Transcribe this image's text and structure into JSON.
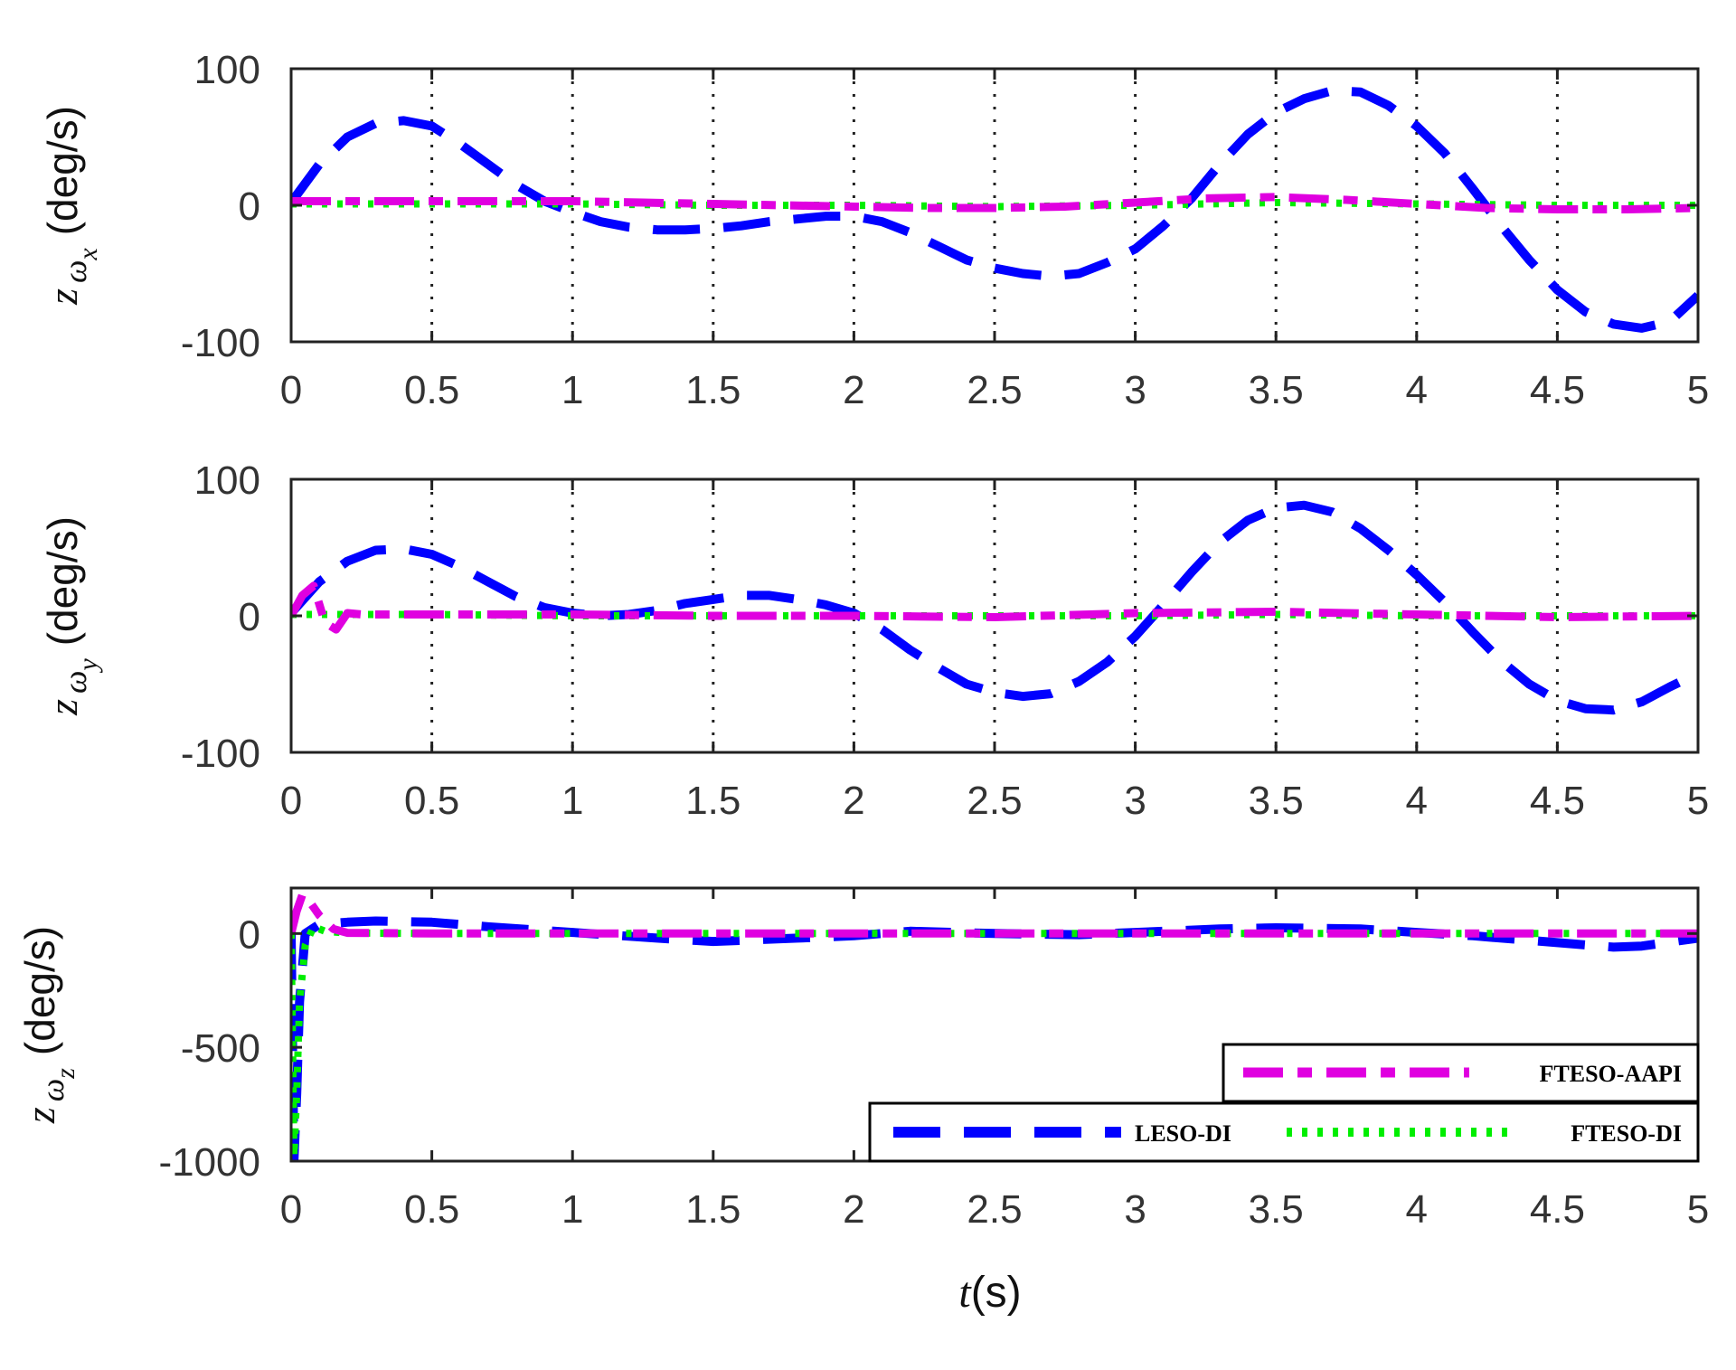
{
  "colors": {
    "LESO-DI": "#0000ff",
    "FTESO-DI": "#00ee00",
    "FTESO-AAPI": "#e000e0",
    "axes": "#222222",
    "grid": "#222222"
  },
  "chart_data": [
    {
      "type": "line",
      "panel": "top",
      "ylabel": "z",
      "ylabel_omega": "ω",
      "ylabel_sub": "x",
      "ylabel_unit": "(deg/s)",
      "xlim": [
        0,
        5
      ],
      "ylim": [
        -100,
        100
      ],
      "xticks": [
        0,
        0.5,
        1,
        1.5,
        2,
        2.5,
        3,
        3.5,
        4,
        4.5,
        5
      ],
      "xtick_labels": [
        "0",
        "0.5",
        "1",
        "1.5",
        "2",
        "2.5",
        "3",
        "3.5",
        "4",
        "4.5",
        "5"
      ],
      "yticks": [
        -100,
        0,
        100
      ],
      "ytick_labels": [
        "-100",
        "0",
        "100"
      ],
      "grid": "vertical dotted at x ticks",
      "series": [
        {
          "name": "LESO-DI",
          "style": "dash",
          "x": [
            0,
            0.1,
            0.2,
            0.3,
            0.4,
            0.5,
            0.6,
            0.7,
            0.8,
            0.9,
            1.0,
            1.1,
            1.2,
            1.3,
            1.4,
            1.5,
            1.6,
            1.7,
            1.8,
            1.9,
            2.0,
            2.1,
            2.2,
            2.3,
            2.4,
            2.5,
            2.6,
            2.7,
            2.8,
            2.9,
            3.0,
            3.1,
            3.2,
            3.3,
            3.4,
            3.5,
            3.6,
            3.7,
            3.8,
            3.9,
            4.0,
            4.1,
            4.2,
            4.3,
            4.4,
            4.5,
            4.6,
            4.7,
            4.8,
            4.9,
            5.0
          ],
          "y": [
            2,
            30,
            50,
            60,
            62,
            58,
            45,
            30,
            15,
            3,
            -5,
            -12,
            -16,
            -18,
            -18,
            -17,
            -15,
            -12,
            -10,
            -8,
            -8,
            -12,
            -20,
            -30,
            -40,
            -46,
            -50,
            -52,
            -50,
            -42,
            -32,
            -15,
            5,
            30,
            52,
            68,
            78,
            84,
            83,
            73,
            58,
            38,
            12,
            -15,
            -40,
            -62,
            -78,
            -87,
            -90,
            -85,
            -66
          ]
        },
        {
          "name": "FTESO-DI",
          "style": "dot",
          "x": [
            0,
            0.5,
            1.0,
            1.5,
            2.0,
            2.5,
            3.0,
            3.5,
            4.0,
            4.5,
            5.0
          ],
          "y": [
            1,
            1,
            1,
            0,
            0,
            -1,
            0,
            2,
            1,
            0,
            0
          ]
        },
        {
          "name": "FTESO-AAPI",
          "style": "dashdot",
          "x": [
            0,
            0.25,
            0.5,
            0.75,
            1.0,
            1.25,
            1.5,
            1.75,
            2.0,
            2.25,
            2.5,
            2.75,
            3.0,
            3.25,
            3.5,
            3.75,
            4.0,
            4.25,
            4.5,
            4.75,
            5.0
          ],
          "y": [
            3,
            3,
            3,
            3,
            3,
            2,
            1,
            0,
            -1,
            -2,
            -2,
            -1,
            2,
            5,
            6,
            4,
            1,
            -2,
            -3,
            -3,
            -2
          ]
        }
      ]
    },
    {
      "type": "line",
      "panel": "middle",
      "ylabel": "z",
      "ylabel_omega": "ω",
      "ylabel_sub": "y",
      "ylabel_unit": "(deg/s)",
      "xlim": [
        0,
        5
      ],
      "ylim": [
        -100,
        100
      ],
      "xticks": [
        0,
        0.5,
        1,
        1.5,
        2,
        2.5,
        3,
        3.5,
        4,
        4.5,
        5
      ],
      "xtick_labels": [
        "0",
        "0.5",
        "1",
        "1.5",
        "2",
        "2.5",
        "3",
        "3.5",
        "4",
        "4.5",
        "5"
      ],
      "yticks": [
        -100,
        0,
        100
      ],
      "ytick_labels": [
        "-100",
        "0",
        "100"
      ],
      "grid": "vertical dotted at x ticks",
      "series": [
        {
          "name": "LESO-DI",
          "style": "dash",
          "x": [
            0,
            0.1,
            0.2,
            0.3,
            0.4,
            0.5,
            0.6,
            0.7,
            0.8,
            0.9,
            1.0,
            1.1,
            1.2,
            1.3,
            1.4,
            1.5,
            1.6,
            1.7,
            1.8,
            1.9,
            2.0,
            2.1,
            2.2,
            2.3,
            2.4,
            2.5,
            2.6,
            2.7,
            2.8,
            2.9,
            3.0,
            3.1,
            3.2,
            3.3,
            3.4,
            3.5,
            3.6,
            3.7,
            3.8,
            3.9,
            4.0,
            4.1,
            4.2,
            4.3,
            4.4,
            4.5,
            4.6,
            4.7,
            4.8,
            4.9,
            5.0
          ],
          "y": [
            2,
            25,
            40,
            48,
            49,
            45,
            36,
            25,
            14,
            6,
            2,
            0,
            1,
            4,
            9,
            12,
            15,
            15,
            12,
            8,
            2,
            -10,
            -25,
            -38,
            -50,
            -56,
            -59,
            -57,
            -48,
            -34,
            -15,
            8,
            32,
            54,
            70,
            79,
            81,
            76,
            64,
            48,
            30,
            10,
            -12,
            -33,
            -50,
            -62,
            -68,
            -69,
            -63,
            -52,
            -42
          ]
        },
        {
          "name": "FTESO-DI",
          "style": "dot",
          "x": [
            0,
            0.5,
            1.0,
            1.5,
            2.0,
            2.5,
            3.0,
            3.5,
            4.0,
            4.5,
            5.0
          ],
          "y": [
            1,
            1,
            0,
            0,
            0,
            0,
            0,
            1,
            0,
            0,
            0
          ]
        },
        {
          "name": "FTESO-AAPI",
          "style": "dashdot",
          "x": [
            0,
            0.04,
            0.08,
            0.12,
            0.16,
            0.2,
            0.25,
            0.5,
            1.0,
            1.5,
            2.0,
            2.5,
            3.0,
            3.5,
            4.0,
            4.5,
            5.0
          ],
          "y": [
            0,
            15,
            22,
            -5,
            -10,
            2,
            1,
            1,
            1,
            0,
            0,
            -1,
            2,
            3,
            1,
            -1,
            0
          ]
        }
      ]
    },
    {
      "type": "line",
      "panel": "bottom",
      "ylabel": "z",
      "ylabel_omega": "ω",
      "ylabel_sub": "z",
      "ylabel_unit": "(deg/s)",
      "xlabel_t": "t",
      "xlabel_unit": "(s)",
      "xlim": [
        0,
        5
      ],
      "ylim": [
        -1000,
        200
      ],
      "xticks": [
        0,
        0.5,
        1,
        1.5,
        2,
        2.5,
        3,
        3.5,
        4,
        4.5,
        5
      ],
      "xtick_labels": [
        "0",
        "0.5",
        "1",
        "1.5",
        "2",
        "2.5",
        "3",
        "3.5",
        "4",
        "4.5",
        "5"
      ],
      "yticks": [
        -1000,
        -500,
        0
      ],
      "ytick_labels": [
        "-1000",
        "-500",
        "0"
      ],
      "legend": {
        "placement": "bottom-right",
        "entries": [
          "FTESO-AAPI",
          "LESO-DI",
          "FTESO-DI"
        ]
      },
      "series": [
        {
          "name": "LESO-DI",
          "style": "dash",
          "x": [
            0,
            0.01,
            0.02,
            0.03,
            0.05,
            0.1,
            0.2,
            0.3,
            0.5,
            0.7,
            1.0,
            1.3,
            1.5,
            1.8,
            2.0,
            2.2,
            2.5,
            2.8,
            3.0,
            3.3,
            3.5,
            3.8,
            4.0,
            4.2,
            4.5,
            4.7,
            4.8,
            5.0
          ],
          "y": [
            0,
            -1000,
            -700,
            -300,
            0,
            40,
            50,
            55,
            50,
            30,
            5,
            -20,
            -35,
            -20,
            -10,
            10,
            0,
            -5,
            5,
            20,
            25,
            20,
            5,
            -10,
            -40,
            -60,
            -55,
            -20
          ]
        },
        {
          "name": "FTESO-DI",
          "style": "dot",
          "x": [
            0,
            0.01,
            0.02,
            0.03,
            0.05,
            0.08,
            0.12,
            0.2,
            0.5,
            1.0,
            2.0,
            3.0,
            4.0,
            5.0
          ],
          "y": [
            0,
            -980,
            -700,
            -300,
            -50,
            30,
            10,
            2,
            0,
            0,
            0,
            0,
            0,
            0
          ]
        },
        {
          "name": "FTESO-AAPI",
          "style": "dashdot",
          "x": [
            0,
            0.02,
            0.04,
            0.06,
            0.1,
            0.15,
            0.2,
            0.5,
            1.0,
            2.0,
            3.0,
            4.0,
            5.0
          ],
          "y": [
            0,
            100,
            170,
            150,
            80,
            20,
            3,
            0,
            0,
            0,
            0,
            0,
            0
          ]
        }
      ]
    }
  ]
}
